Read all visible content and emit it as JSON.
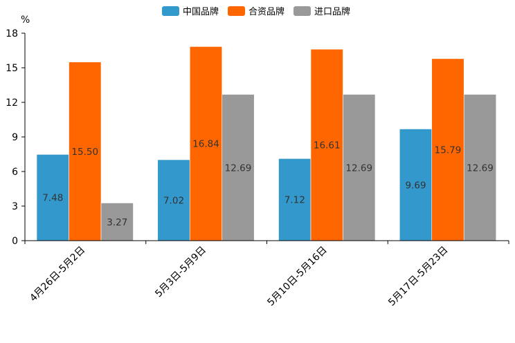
{
  "chart_data": {
    "type": "bar",
    "title": "",
    "ylabel": "%",
    "xlabel": "",
    "ylim": [
      0,
      18
    ],
    "yticks": [
      0,
      3,
      6,
      9,
      12,
      15,
      18
    ],
    "categories": [
      "4月26日-5月2日",
      "5月3日-5月9日",
      "5月10日-5月16日",
      "5月17日-5月23日"
    ],
    "series": [
      {
        "name": "中国品牌",
        "color": "#3398cc",
        "values": [
          7.48,
          7.02,
          7.12,
          9.69
        ],
        "labels": [
          "7.48",
          "7.02",
          "7.12",
          "9.69"
        ]
      },
      {
        "name": "合资品牌",
        "color": "#ff6600",
        "values": [
          15.5,
          16.84,
          16.61,
          15.79
        ],
        "labels": [
          "15.50",
          "16.84",
          "16.61",
          "15.79"
        ]
      },
      {
        "name": "进口品牌",
        "color": "#999999",
        "values": [
          3.27,
          12.69,
          12.69,
          12.69
        ],
        "labels": [
          "3.27",
          "12.69",
          "12.69",
          "12.69"
        ]
      }
    ],
    "legend_position": "top-center",
    "grid": false
  }
}
